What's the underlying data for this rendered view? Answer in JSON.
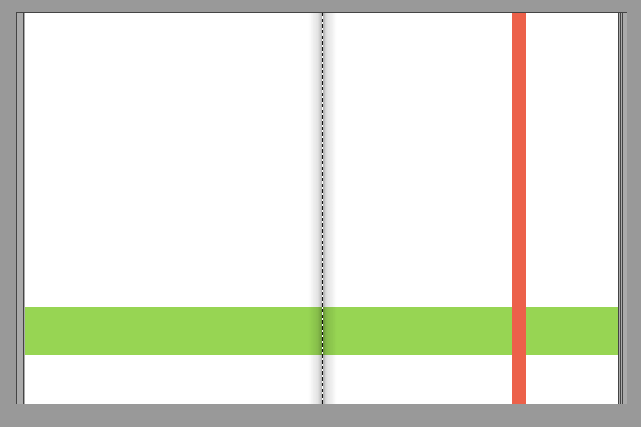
{
  "colors": {
    "background": "#999999",
    "page": "#ffffff",
    "band": "#97d553",
    "ribbon": "#ec614a"
  }
}
